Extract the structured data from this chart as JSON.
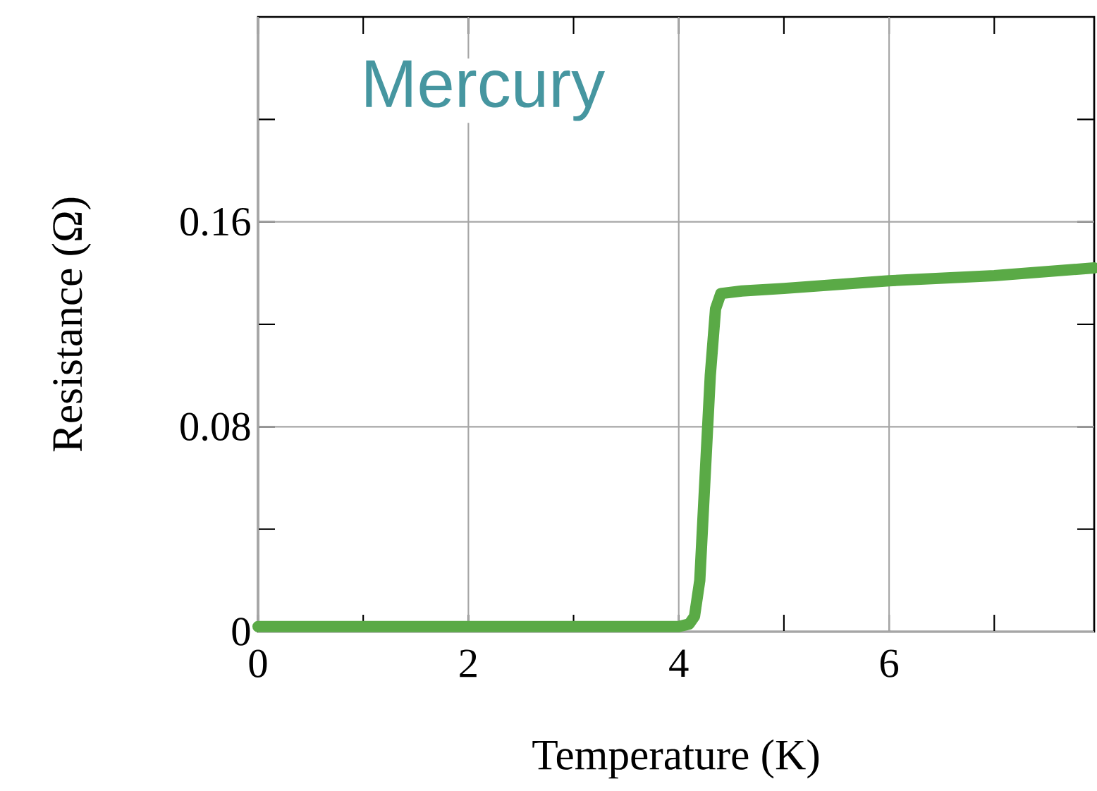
{
  "chart_data": {
    "type": "line",
    "xlabel": "Temperature (K)",
    "ylabel": "Resistance (Ω)",
    "annotations": [
      "Mercury"
    ],
    "x": [
      0,
      1,
      2,
      3,
      4,
      4.1,
      4.15,
      4.2,
      4.25,
      4.3,
      4.35,
      4.4,
      4.6,
      5,
      6,
      7,
      7.95
    ],
    "series": [
      {
        "color": "#5aaa46",
        "values": [
          0.002,
          0.002,
          0.002,
          0.002,
          0.002,
          0.003,
          0.006,
          0.02,
          0.06,
          0.1,
          0.126,
          0.132,
          0.133,
          0.134,
          0.137,
          0.139,
          0.142
        ]
      }
    ],
    "xlim": [
      0,
      7.95
    ],
    "ylim": [
      0,
      0.24
    ],
    "xticks": [
      0,
      {
        "value": 1,
        "label": null
      },
      2,
      {
        "value": 3,
        "label": null
      },
      4,
      {
        "value": 5,
        "label": null
      },
      6,
      {
        "value": 7,
        "label": null
      }
    ],
    "yticks": [
      0,
      {
        "value": 0.04,
        "label": null
      },
      0.08,
      {
        "value": 0.12,
        "label": null
      },
      0.16,
      {
        "value": 0.2,
        "label": null
      }
    ],
    "grid": true,
    "marker": "none",
    "line_style": "solid"
  }
}
